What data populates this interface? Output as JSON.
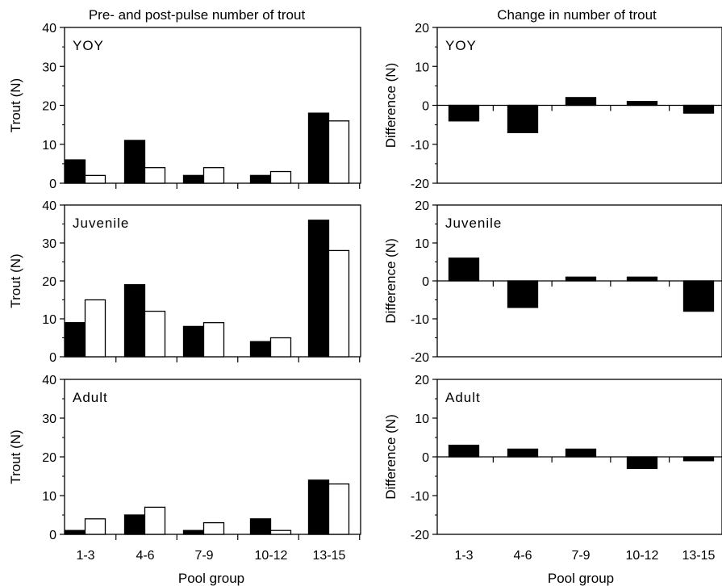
{
  "chart_data": [
    {
      "type": "bar",
      "title": "Pre- and post-pulse number of trout",
      "ylabel": "Trout (N)",
      "xlabel": "",
      "ylim": [
        0,
        40
      ],
      "yticks": [
        "0",
        "10",
        "20",
        "30",
        "40"
      ],
      "panels": [
        {
          "label": "YOY",
          "series": [
            {
              "fill": "#000000",
              "values": [
                6,
                11,
                2,
                2,
                18
              ]
            },
            {
              "fill": "#ffffff",
              "values": [
                2,
                4,
                4,
                3,
                16
              ]
            }
          ]
        },
        {
          "label": "Juvenile",
          "series": [
            {
              "fill": "#000000",
              "values": [
                9,
                19,
                8,
                4,
                36
              ]
            },
            {
              "fill": "#ffffff",
              "values": [
                15,
                12,
                9,
                5,
                28
              ]
            }
          ]
        },
        {
          "label": "Adult",
          "series": [
            {
              "fill": "#000000",
              "values": [
                1,
                5,
                1,
                4,
                14
              ]
            },
            {
              "fill": "#ffffff",
              "values": [
                4,
                7,
                3,
                1,
                13
              ]
            }
          ]
        }
      ]
    },
    {
      "type": "bar",
      "title": "Change in number of trout",
      "ylabel": "Difference (N)",
      "xlabel": "",
      "ylim": [
        -20,
        20
      ],
      "yticks": [
        "-20",
        "-10",
        "0",
        "10",
        "20"
      ],
      "panels": [
        {
          "label": "YOY",
          "series": [
            {
              "fill": "#000000",
              "values": [
                -4,
                -7,
                2,
                1,
                -2
              ]
            }
          ]
        },
        {
          "label": "Juvenile",
          "series": [
            {
              "fill": "#000000",
              "values": [
                6,
                -7,
                1,
                1,
                -8
              ]
            }
          ]
        },
        {
          "label": "Adult",
          "series": [
            {
              "fill": "#000000",
              "values": [
                3,
                2,
                2,
                -3,
                -1
              ]
            }
          ]
        }
      ]
    }
  ],
  "shared": {
    "categories": [
      "1-3",
      "4-6",
      "7-9",
      "10-12",
      "13-15"
    ],
    "xlabel": "Pool group"
  }
}
